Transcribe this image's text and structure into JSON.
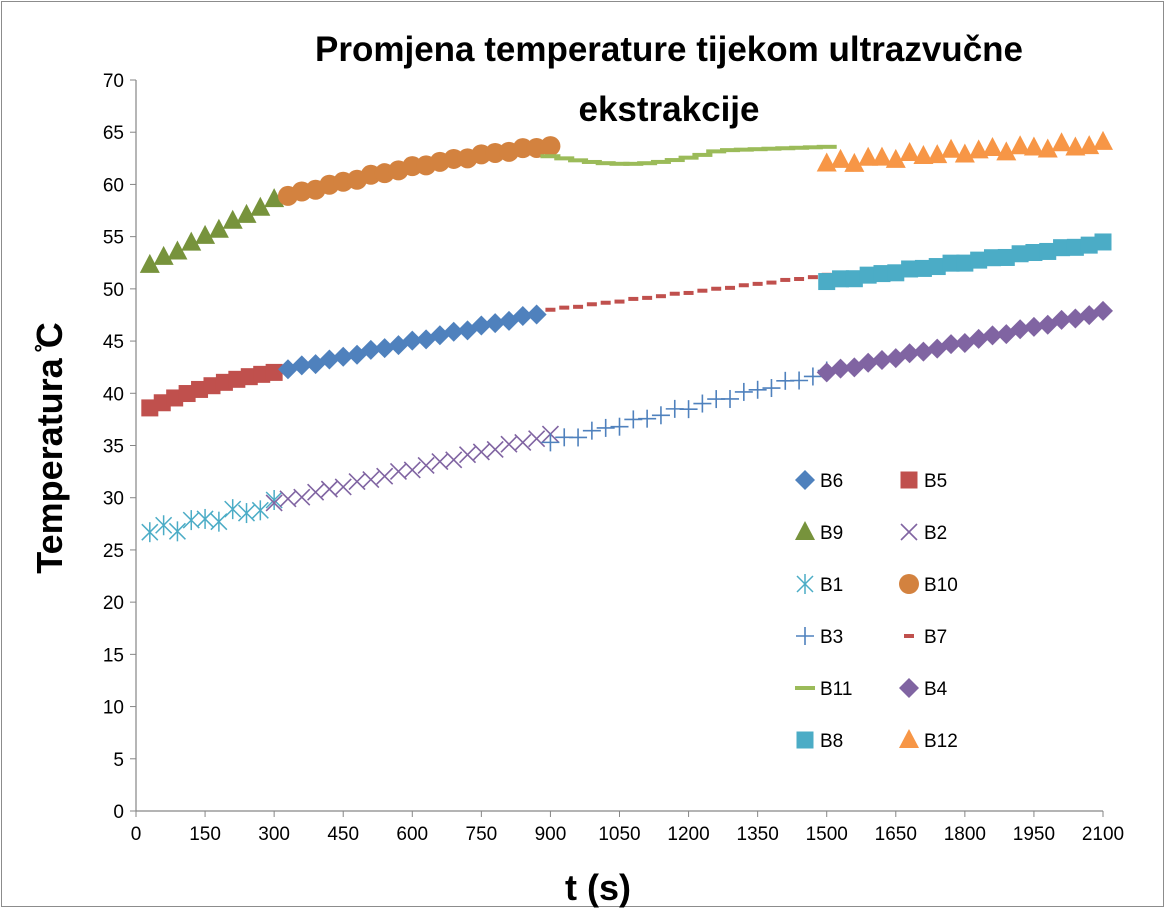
{
  "chart_data": {
    "type": "scatter",
    "title": "Promjena temperature tijekom ultrazvučne ekstrakcije",
    "title_lines": [
      "Promjena temperature tijekom ultrazvučne",
      "ekstrakcije"
    ],
    "xlabel": "t (s)",
    "ylabel": "Temperatura ̊C",
    "xlim": [
      0,
      2100
    ],
    "ylim": [
      0,
      70
    ],
    "xticks": [
      0,
      150,
      300,
      450,
      600,
      750,
      900,
      1050,
      1200,
      1350,
      1500,
      1650,
      1800,
      1950,
      2100
    ],
    "yticks": [
      0,
      5,
      10,
      15,
      20,
      25,
      30,
      35,
      40,
      45,
      50,
      55,
      60,
      65,
      70
    ],
    "grid": false,
    "legend_position": "right, inside plot",
    "legend_order": [
      "B6",
      "B5",
      "B9",
      "B2",
      "B1",
      "B10",
      "B3",
      "B7",
      "B11",
      "B4",
      "B8",
      "B12"
    ],
    "series": [
      {
        "name": "B1",
        "marker": "asterisk",
        "color": "#4bacc6",
        "x_start": 30,
        "x_end": 300,
        "y_start": 26.7,
        "y_end": 29.3,
        "count": 10,
        "wiggle": 0.5
      },
      {
        "name": "B2",
        "marker": "x",
        "color": "#8064a2",
        "x_start": 300,
        "x_end": 900,
        "y_start": 29.5,
        "y_end": 36.0,
        "count": 21,
        "wiggle": 0.1
      },
      {
        "name": "B3",
        "marker": "plus",
        "color": "#4f81bd",
        "x_start": 900,
        "x_end": 1500,
        "y_start": 35.3,
        "y_end": 42.0,
        "count": 21,
        "wiggle": 0.2
      },
      {
        "name": "B4",
        "marker": "diamond",
        "color": "#8064a2",
        "x_start": 1500,
        "x_end": 2100,
        "y_start": 42.0,
        "y_end": 47.8,
        "count": 21,
        "wiggle": 0.1
      },
      {
        "name": "B5",
        "marker": "square",
        "color": "#c0504d",
        "x_start": 30,
        "x_end": 300,
        "y_start": 38.6,
        "y_end": 42.0,
        "count": 11,
        "wiggle": 0.0,
        "curve": 0.5
      },
      {
        "name": "B6",
        "marker": "diamond",
        "color": "#4f81bd",
        "x_start": 330,
        "x_end": 870,
        "y_start": 42.3,
        "y_end": 47.6,
        "count": 19,
        "wiggle": 0.1
      },
      {
        "name": "B7",
        "marker": "dash-short",
        "color": "#c0504d",
        "x_start": 900,
        "x_end": 1500,
        "y_start": 48.0,
        "y_end": 51.3,
        "count": 21,
        "wiggle": 0.05
      },
      {
        "name": "B8",
        "marker": "square",
        "color": "#4bacc6",
        "x_start": 1500,
        "x_end": 2100,
        "y_start": 50.7,
        "y_end": 54.4,
        "count": 21,
        "wiggle": 0.1
      },
      {
        "name": "B9",
        "marker": "triangle",
        "color": "#77933c",
        "x_start": 30,
        "x_end": 300,
        "y_start": 52.3,
        "y_end": 58.5,
        "count": 10,
        "wiggle": 0.1
      },
      {
        "name": "B10",
        "marker": "circle",
        "color": "#d3823f",
        "x_start": 330,
        "x_end": 900,
        "y_start": 58.9,
        "y_end": 63.7,
        "count": 20,
        "wiggle": 0.1,
        "curve": 0.4
      },
      {
        "name": "B11",
        "marker": "dash",
        "color": "#9bbb59",
        "x_start": 900,
        "x_end": 1500,
        "y_start": 62.7,
        "y_end": 63.6,
        "count": 21,
        "wiggle": 0.0,
        "dip": 1.0
      },
      {
        "name": "B12",
        "marker": "triangle",
        "color": "#f79646",
        "x_start": 1500,
        "x_end": 2100,
        "y_start": 62.0,
        "y_end": 63.8,
        "count": 21,
        "wiggle": 0.3,
        "curve": 0.5
      }
    ]
  }
}
